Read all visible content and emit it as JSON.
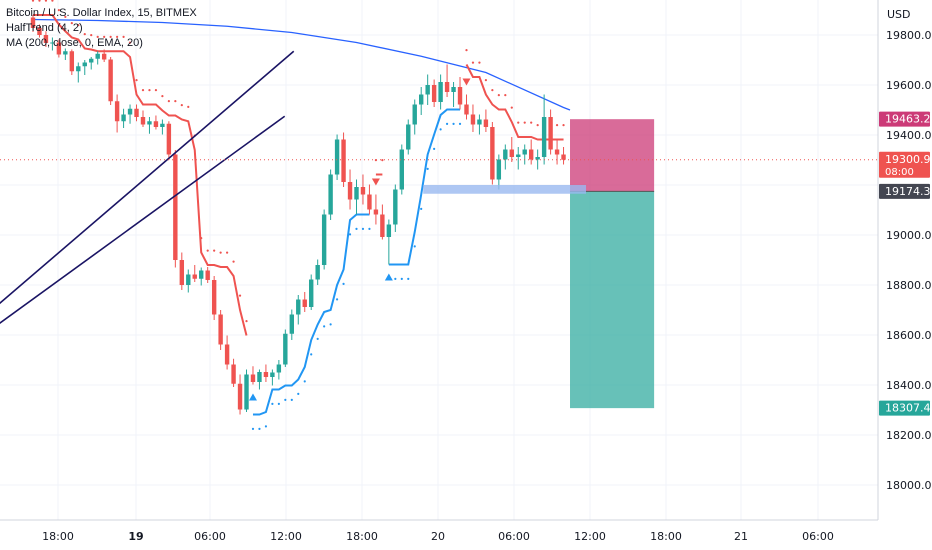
{
  "legend": {
    "symbol": "Bitcoin / U.S. Dollar Index, 15, BITMEX",
    "indicator1": "HalfTrend (4, 2)",
    "indicator2": "MA (200, close, 0, EMA, 20)"
  },
  "colors": {
    "candle_up": "#26a69a",
    "candle_down": "#ef5350",
    "halftrend_down": "#ef5350",
    "halftrend_up": "#2196f3",
    "ema": "#2962ff",
    "trendline": "#1a1464",
    "stop_zone": "#cc3a77",
    "target_zone": "#26a69a",
    "entry_line": "#9ab9f0"
  },
  "chart_data": {
    "type": "candlestick",
    "title": "Bitcoin / U.S. Dollar Index, 15, BITMEX",
    "currency_label": "USD",
    "x_ticks": [
      "18:00",
      "19",
      "06:00",
      "12:00",
      "18:00",
      "20",
      "06:00",
      "12:00",
      "18:00",
      "21",
      "06:00"
    ],
    "y_ticks": [
      18000,
      18200,
      18400,
      18600,
      18800,
      19000,
      19200,
      19400,
      19600,
      19800
    ],
    "y_tick_labels": [
      "18000.00",
      "18200.00",
      "18400.00",
      "18600.00",
      "18800.00",
      "19000.00",
      "19400.00",
      "19600.00",
      "19800.00"
    ],
    "ylim": [
      17860,
      19940
    ],
    "price_markers": [
      {
        "value": 19463.28,
        "label": "19463.28",
        "kind": "stop"
      },
      {
        "value": 19300.91,
        "label": "19300.91",
        "sublabel": "08:00",
        "kind": "last"
      },
      {
        "value": 19174.33,
        "label": "19174.33",
        "kind": "entry"
      },
      {
        "value": 18307.49,
        "label": "18307.49",
        "kind": "target"
      }
    ],
    "series": [
      {
        "name": "BTC/USD candles",
        "start": "18:00",
        "values": [
          [
            19870,
            19880,
            19812,
            19828
          ],
          [
            19828,
            19842,
            19790,
            19800
          ],
          [
            19800,
            19815,
            19752,
            19768
          ],
          [
            19768,
            19790,
            19738,
            19770
          ],
          [
            19770,
            19782,
            19710,
            19722
          ],
          [
            19722,
            19746,
            19700,
            19735
          ],
          [
            19735,
            19742,
            19640,
            19655
          ],
          [
            19655,
            19690,
            19610,
            19675
          ],
          [
            19675,
            19700,
            19640,
            19690
          ],
          [
            19690,
            19712,
            19662,
            19705
          ],
          [
            19705,
            19735,
            19682,
            19725
          ],
          [
            19725,
            19742,
            19692,
            19702
          ],
          [
            19702,
            19712,
            19520,
            19535
          ],
          [
            19535,
            19562,
            19410,
            19455
          ],
          [
            19455,
            19505,
            19428,
            19482
          ],
          [
            19482,
            19522,
            19445,
            19505
          ],
          [
            19505,
            19522,
            19455,
            19472
          ],
          [
            19472,
            19498,
            19432,
            19442
          ],
          [
            19442,
            19472,
            19405,
            19455
          ],
          [
            19455,
            19478,
            19422,
            19432
          ],
          [
            19432,
            19462,
            19402,
            19445
          ],
          [
            19445,
            19455,
            19300,
            19322
          ],
          [
            19322,
            19340,
            18870,
            18900
          ],
          [
            18900,
            18930,
            18780,
            18800
          ],
          [
            18800,
            18862,
            18770,
            18842
          ],
          [
            18842,
            18880,
            18812,
            18825
          ],
          [
            18825,
            18870,
            18798,
            18858
          ],
          [
            18858,
            18872,
            18808,
            18820
          ],
          [
            18820,
            18836,
            18660,
            18682
          ],
          [
            18682,
            18700,
            18540,
            18562
          ],
          [
            18562,
            18598,
            18462,
            18482
          ],
          [
            18482,
            18505,
            18392,
            18405
          ],
          [
            18405,
            18442,
            18282,
            18302
          ],
          [
            18302,
            18462,
            18292,
            18442
          ],
          [
            18442,
            18475,
            18402,
            18412
          ],
          [
            18412,
            18462,
            18382,
            18452
          ],
          [
            18452,
            18482,
            18412,
            18432
          ],
          [
            18432,
            18462,
            18398,
            18450
          ],
          [
            18450,
            18500,
            18422,
            18482
          ],
          [
            18482,
            18622,
            18472,
            18605
          ],
          [
            18605,
            18702,
            18580,
            18682
          ],
          [
            18682,
            18760,
            18642,
            18742
          ],
          [
            18742,
            18772,
            18692,
            18712
          ],
          [
            18712,
            18842,
            18700,
            18822
          ],
          [
            18822,
            18902,
            18800,
            18880
          ],
          [
            18880,
            19102,
            18862,
            19082
          ],
          [
            19082,
            19262,
            19060,
            19242
          ],
          [
            19242,
            19402,
            19220,
            19382
          ],
          [
            19382,
            19410,
            19192,
            19212
          ],
          [
            19212,
            19262,
            19102,
            19142
          ],
          [
            19142,
            19222,
            19082,
            19192
          ],
          [
            19192,
            19242,
            19122,
            19162
          ],
          [
            19162,
            19202,
            19082,
            19102
          ],
          [
            19102,
            19162,
            19042,
            19082
          ],
          [
            19082,
            19122,
            18982,
            18992
          ],
          [
            18992,
            19062,
            18882,
            19042
          ],
          [
            19042,
            19202,
            19012,
            19182
          ],
          [
            19182,
            19362,
            19162,
            19342
          ],
          [
            19342,
            19462,
            19322,
            19442
          ],
          [
            19442,
            19542,
            19402,
            19522
          ],
          [
            19522,
            19592,
            19480,
            19562
          ],
          [
            19562,
            19642,
            19520,
            19600
          ],
          [
            19600,
            19622,
            19512,
            19532
          ],
          [
            19532,
            19642,
            19502,
            19612
          ],
          [
            19612,
            19682,
            19552,
            19572
          ],
          [
            19572,
            19612,
            19512,
            19592
          ],
          [
            19592,
            19632,
            19502,
            19522
          ],
          [
            19522,
            19562,
            19462,
            19482
          ],
          [
            19482,
            19522,
            19412,
            19442
          ],
          [
            19442,
            19482,
            19402,
            19462
          ],
          [
            19462,
            19502,
            19412,
            19432
          ],
          [
            19432,
            19452,
            19202,
            19222
          ],
          [
            19222,
            19322,
            19182,
            19302
          ],
          [
            19302,
            19362,
            19262,
            19342
          ],
          [
            19342,
            19392,
            19292,
            19312
          ],
          [
            19312,
            19352,
            19262,
            19322
          ],
          [
            19322,
            19362,
            19282,
            19342
          ],
          [
            19342,
            19382,
            19282,
            19302
          ],
          [
            19302,
            19342,
            19262,
            19312
          ],
          [
            19312,
            19562,
            19282,
            19472
          ],
          [
            19472,
            19502,
            19322,
            19342
          ],
          [
            19342,
            19382,
            19282,
            19322
          ],
          [
            19322,
            19352,
            19282,
            19301
          ]
        ]
      },
      {
        "name": "MA 200 EMA",
        "values": [
          [
            0,
            19862
          ],
          [
            10,
            19858
          ],
          [
            20,
            19850
          ],
          [
            30,
            19835
          ],
          [
            40,
            19810
          ],
          [
            50,
            19770
          ],
          [
            60,
            19715
          ],
          [
            70,
            19650
          ],
          [
            82,
            19510
          ],
          [
            83,
            19500
          ]
        ]
      }
    ],
    "halftrend": {
      "up_start_index": 34,
      "down_start_index": 53,
      "up2_start_index": 55,
      "down2_start_index": 67
    },
    "trendlines": [
      {
        "from": [
          -36.2,
          18038
        ],
        "to": [
          40.3,
          19735
        ]
      },
      {
        "from": [
          -36.9,
          18050
        ],
        "to": [
          38.9,
          19475
        ]
      }
    ],
    "position": {
      "type": "short",
      "start_index": 83,
      "end_index": 96,
      "entry": 19174.33,
      "stop": 19463.28,
      "target": 18307.49
    },
    "entry_zone": {
      "from_index": 60,
      "to_index": 83,
      "low": 19165,
      "high": 19200
    }
  }
}
